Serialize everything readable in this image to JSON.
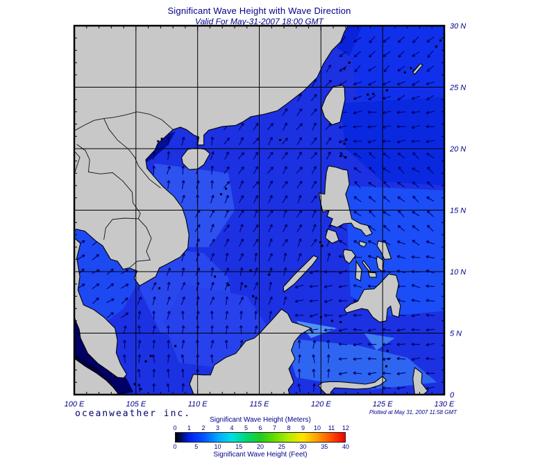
{
  "title": "Significant Wave Height with Wave Direction",
  "subtitle": "Valid For May-31-2007 18:00 GMT",
  "axes": {
    "lon_labels": [
      "100 E",
      "105 E",
      "110 E",
      "115 E",
      "120 E",
      "125 E",
      "130 E"
    ],
    "lat_labels": [
      "0",
      "5 N",
      "10 N",
      "15 N",
      "20 N",
      "25 N",
      "30 N"
    ]
  },
  "colorbar": {
    "meters_title": "Significant Wave Height (Meters)",
    "meters_ticks": [
      "0",
      "1",
      "2",
      "3",
      "4",
      "5",
      "6",
      "7",
      "8",
      "9",
      "10",
      "11",
      "12"
    ],
    "feet_title": "Significant Wave Height (Feet)",
    "feet_ticks": [
      "0",
      "5",
      "10",
      "15",
      "20",
      "25",
      "30",
      "35",
      "40"
    ],
    "gradient": [
      "#000008",
      "#0020f0",
      "#0054ff",
      "#00a8ff",
      "#00e0e0",
      "#00d878",
      "#20cc20",
      "#66dc00",
      "#b4ec00",
      "#ffe400",
      "#ffa000",
      "#ff5000",
      "#f00000"
    ]
  },
  "credits": {
    "brand": "oceanweather inc.",
    "plotted": "Plotted at May 31, 2007 11:58 GMT"
  },
  "colors": {
    "ocean_base": "#1C31E2",
    "ocean_light": "#2E52F0",
    "ocean_calm_dark": "#000066",
    "land": "#C8C8C8",
    "arrow": "#000066",
    "text": "#000088"
  }
}
